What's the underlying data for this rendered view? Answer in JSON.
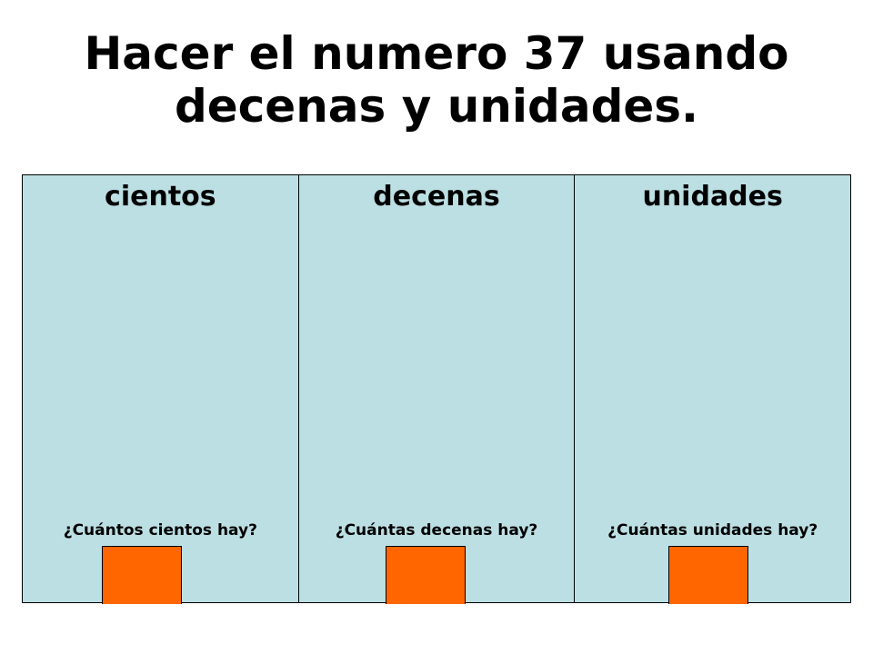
{
  "title": {
    "line1": "Hacer el numero 37 usando",
    "line2": "decenas y unidades."
  },
  "columns": [
    {
      "header": "cientos",
      "question": "¿Cuántos cientos hay?"
    },
    {
      "header": "decenas",
      "question": "¿Cuántas decenas hay?"
    },
    {
      "header": "unidades",
      "question": "¿Cuántas unidades hay?"
    }
  ],
  "colors": {
    "panel": "#bcdfe3",
    "answer_box": "#ff6600"
  }
}
